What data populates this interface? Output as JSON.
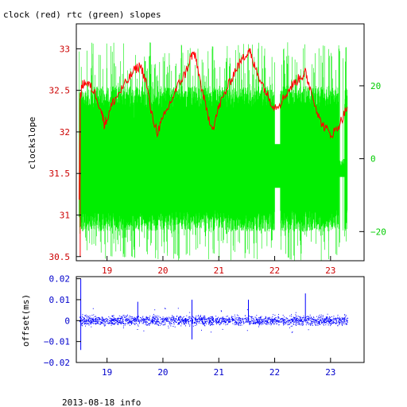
{
  "chart_data": [
    {
      "type": "line",
      "title": "clock (red) rtc (green) slopes",
      "xlabel": "",
      "ylabel": "clockslope",
      "xlim": [
        18.45,
        23.6
      ],
      "ylim": [
        30.45,
        33.3
      ],
      "x_ticks": [
        19,
        20,
        21,
        22,
        23
      ],
      "y_ticks": [
        30.5,
        31,
        31.5,
        32,
        32.5,
        33
      ],
      "y_tick_labels": [
        "30.5",
        "31",
        "31.5",
        "32",
        "32.5",
        "33"
      ],
      "y2lim": [
        -28,
        37
      ],
      "y2_ticks": [
        -20,
        0,
        20
      ],
      "y2_tick_labels": [
        "−20",
        "0",
        "20"
      ],
      "colors": {
        "clock": "#ff0000",
        "rtc": "#00ee00",
        "axis_left": "#cc0000",
        "axis_right": "#00cc00",
        "frame": "#000000"
      },
      "series": [
        {
          "color": "#ff0000",
          "axis": "left",
          "x": [
            18.5,
            18.52,
            18.55,
            18.6,
            18.7,
            18.8,
            18.9,
            18.95,
            19.0,
            19.1,
            19.2,
            19.3,
            19.4,
            19.5,
            19.6,
            19.7,
            19.8,
            19.9,
            20.0,
            20.1,
            20.2,
            20.3,
            20.4,
            20.5,
            20.55,
            20.6,
            20.7,
            20.8,
            20.9,
            21.0,
            21.1,
            21.2,
            21.3,
            21.4,
            21.5,
            21.55,
            21.6,
            21.7,
            21.8,
            21.9,
            22.0,
            22.1,
            22.2,
            22.3,
            22.4,
            22.5,
            22.55,
            22.6,
            22.7,
            22.8,
            22.9,
            23.0,
            23.1,
            23.2,
            23.3
          ],
          "y": [
            31.2,
            32.4,
            32.55,
            32.6,
            32.55,
            32.45,
            32.25,
            32.1,
            32.15,
            32.35,
            32.45,
            32.55,
            32.65,
            32.75,
            32.8,
            32.6,
            32.2,
            32.0,
            32.15,
            32.3,
            32.45,
            32.6,
            32.7,
            32.9,
            32.95,
            32.85,
            32.5,
            32.2,
            32.05,
            32.3,
            32.45,
            32.6,
            32.75,
            32.85,
            32.95,
            33.0,
            32.85,
            32.7,
            32.55,
            32.4,
            32.3,
            32.35,
            32.45,
            32.55,
            32.62,
            32.68,
            32.72,
            32.6,
            32.4,
            32.15,
            32.05,
            31.97,
            32.02,
            32.15,
            32.3
          ]
        },
        {
          "color": "#00ee00",
          "axis": "right",
          "x": [
            18.5,
            19.0,
            19.5,
            20.0,
            20.5,
            21.0,
            21.5,
            22.0,
            22.5,
            23.0,
            23.3
          ],
          "y_band_center": 0,
          "y_band_range": [
            -20,
            20
          ],
          "y_spikes_max": [
            32,
            -30
          ]
        }
      ]
    },
    {
      "type": "scatter",
      "title": "",
      "xlabel": "",
      "ylabel": "offset(ms)",
      "xlim": [
        18.45,
        23.6
      ],
      "ylim": [
        -0.02,
        0.021
      ],
      "x_ticks": [
        19,
        20,
        21,
        22,
        23
      ],
      "y_ticks": [
        -0.02,
        -0.01,
        0,
        0.01,
        0.02
      ],
      "y_tick_labels": [
        "−0.02",
        "−0.01",
        "0",
        "0.01",
        "0.02"
      ],
      "colors": {
        "points": "#0000ff",
        "axis": "#0000cc"
      },
      "series": [
        {
          "color": "#0000ff",
          "x_range": [
            18.5,
            23.3
          ],
          "y_center": 0,
          "y_band": [
            -0.003,
            0.003
          ],
          "outliers": [
            {
              "x": 18.53,
              "y": 0.02
            },
            {
              "x": 18.53,
              "y": -0.014
            },
            {
              "x": 19.55,
              "y": 0.009
            },
            {
              "x": 20.52,
              "y": 0.01
            },
            {
              "x": 20.52,
              "y": -0.009
            },
            {
              "x": 21.53,
              "y": 0.01
            },
            {
              "x": 22.55,
              "y": 0.013
            }
          ]
        }
      ]
    }
  ],
  "footer": {
    "text": "2013-08-18 info"
  }
}
